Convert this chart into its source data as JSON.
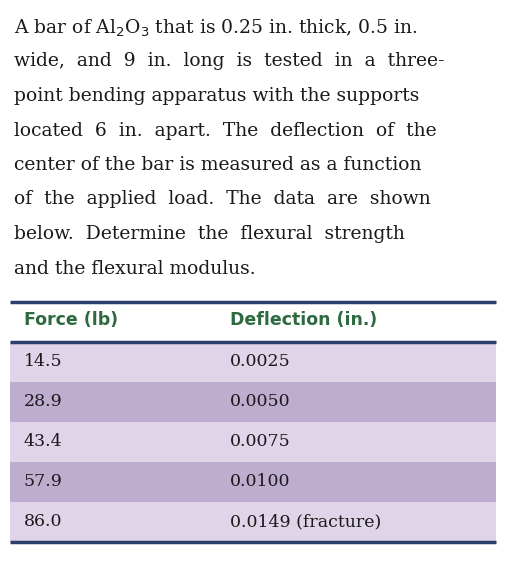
{
  "lines": [
    "A bar of Al$_2$O$_3$ that is 0.25 in. thick, 0.5 in.",
    "wide,  and  9  in.  long  is  tested  in  a  three-",
    "point bending apparatus with the supports",
    "located  6  in.  apart.  The  deflection  of  the",
    "center of the bar is measured as a function",
    "of  the  applied  load.  The  data  are  shown",
    "below.  Determine  the  flexural  strength",
    "and the flexural modulus."
  ],
  "col1_header": "Force (lb)",
  "col2_header": "Deflection (in.)",
  "header_color": "#2d6a3f",
  "line_color": "#2c3e6b",
  "rows": [
    {
      "force": "14.5",
      "deflection": "0.0025",
      "bg": "#dfd4e8"
    },
    {
      "force": "28.9",
      "deflection": "0.0050",
      "bg": "#bfadd0"
    },
    {
      "force": "43.4",
      "deflection": "0.0075",
      "bg": "#dfd4e8"
    },
    {
      "force": "57.9",
      "deflection": "0.0100",
      "bg": "#bfadd0"
    },
    {
      "force": "86.0",
      "deflection": "0.0149 (fracture)",
      "bg": "#dfd4e8"
    }
  ],
  "bg_color": "#ffffff",
  "text_color": "#1a1a1a",
  "font_size_para": 13.5,
  "font_size_header": 12.5,
  "font_size_data": 12.5,
  "fig_width": 5.06,
  "fig_height": 5.67
}
